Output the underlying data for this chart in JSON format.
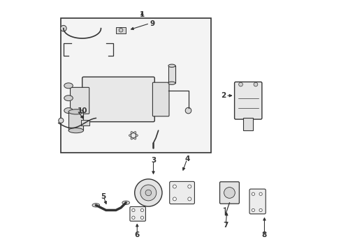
{
  "title": "",
  "bg_color": "#ffffff",
  "line_color": "#333333",
  "figsize": [
    4.89,
    3.6
  ],
  "dpi": 100
}
